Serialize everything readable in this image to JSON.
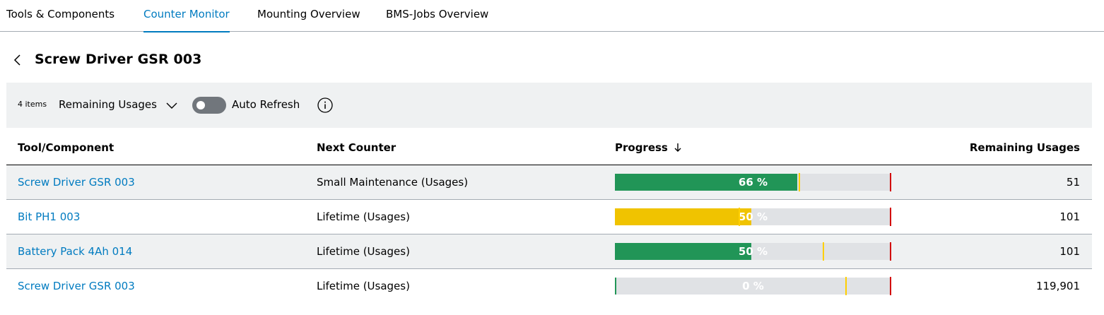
{
  "tabs": [
    {
      "label": "Tools & Components",
      "active": false
    },
    {
      "label": "Counter Monitor",
      "active": true
    },
    {
      "label": "Mounting Overview",
      "active": false
    },
    {
      "label": "BMS-Jobs Overview",
      "active": false
    }
  ],
  "page": {
    "title": "Screw Driver GSR 003"
  },
  "toolbar": {
    "items_count": "4 items",
    "view_select": "Remaining Usages",
    "auto_refresh_label": "Auto Refresh",
    "auto_refresh_on": false
  },
  "table": {
    "columns": [
      "Tool/Component",
      "Next Counter",
      "Progress",
      "Remaining Usages"
    ],
    "sort": {
      "column": "Progress",
      "direction": "descending"
    },
    "rows": [
      {
        "tool": "Screw Driver GSR 003",
        "counter": "Small Maintenance (Usages)",
        "progress_label": "66 %",
        "progress": 0.66,
        "warning_at": 0.665,
        "bar_color": "#219557",
        "remaining": "51"
      },
      {
        "tool": "Bit PH1 003",
        "counter": "Lifetime (Usages)",
        "progress_label": "50 %",
        "progress": 0.494,
        "warning_at": 0.448,
        "bar_color": "#f0c300",
        "remaining": "101"
      },
      {
        "tool": "Battery Pack 4Ah 014",
        "counter": "Lifetime (Usages)",
        "progress_label": "50 %",
        "progress": 0.494,
        "warning_at": 0.752,
        "bar_color": "#219557",
        "remaining": "101"
      },
      {
        "tool": "Screw Driver GSR 003",
        "counter": "Lifetime (Usages)",
        "progress_label": "0 %",
        "progress": 0.004,
        "warning_at": 0.833,
        "bar_color": "#219557",
        "remaining": "119,901"
      }
    ]
  },
  "colors": {
    "accent": "#007bc0",
    "success": "#219557",
    "warning": "#ffcf00",
    "danger": "#d20000",
    "track": "#e0e2e5"
  },
  "icons": {
    "back": "chevron-left-icon",
    "dropdown": "chevron-down-icon",
    "info": "info-icon",
    "sort": "arrow-down-icon"
  }
}
